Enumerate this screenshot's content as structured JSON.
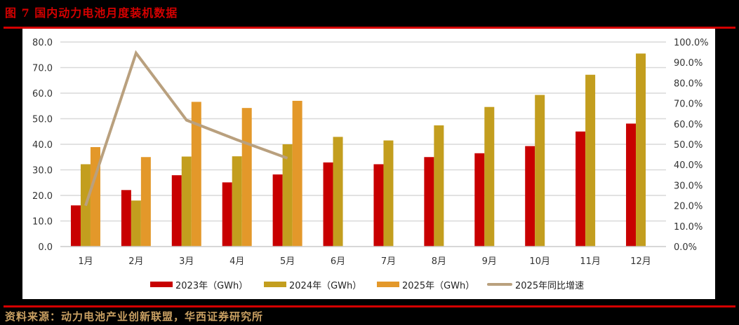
{
  "header": {
    "title": "图 7  国内动力电池月度装机数据"
  },
  "footer": {
    "source": "资料来源：动力电池产业创新联盟，华西证券研究所"
  },
  "colors": {
    "s2023": "#C80000",
    "s2024": "#C39E1E",
    "s2025": "#E3982A",
    "growth": "#B9A07E",
    "grid": "#D9D9D9",
    "accent_red": "#D40000"
  },
  "legend": [
    {
      "label": "2023年（GWh）",
      "color": "#C80000",
      "kind": "bar"
    },
    {
      "label": "2024年（GWh）",
      "color": "#C39E1E",
      "kind": "bar"
    },
    {
      "label": "2025年（GWh）",
      "color": "#E3982A",
      "kind": "bar"
    },
    {
      "label": "2025年同比增速",
      "color": "#B9A07E",
      "kind": "line"
    }
  ],
  "chart_data": {
    "type": "bar",
    "title": "图 7  国内动力电池月度装机数据",
    "xlabel": "",
    "ylabel": "",
    "categories": [
      "1月",
      "2月",
      "3月",
      "4月",
      "5月",
      "6月",
      "7月",
      "8月",
      "9月",
      "10月",
      "11月",
      "12月"
    ],
    "series": [
      {
        "name": "2023年（GWh）",
        "type": "bar",
        "axis": "left",
        "values": [
          16.1,
          22.1,
          27.9,
          25.1,
          28.2,
          32.9,
          32.2,
          35.0,
          36.5,
          39.3,
          45.0,
          48.1
        ]
      },
      {
        "name": "2024年（GWh）",
        "type": "bar",
        "axis": "left",
        "values": [
          32.2,
          18.0,
          35.2,
          35.3,
          40.0,
          42.9,
          41.5,
          47.4,
          54.6,
          59.3,
          67.2,
          75.5
        ]
      },
      {
        "name": "2025年（GWh）",
        "type": "bar",
        "axis": "left",
        "values": [
          38.9,
          35.0,
          56.6,
          54.2,
          57.0,
          null,
          null,
          null,
          null,
          null,
          null,
          null
        ]
      },
      {
        "name": "2025年同比增速",
        "type": "line",
        "axis": "right",
        "values": [
          20.0,
          94.6,
          61.8,
          52.2,
          43.2,
          null,
          null,
          null,
          null,
          null,
          null,
          null
        ]
      }
    ],
    "ylim": [
      0,
      80
    ],
    "y2lim": [
      0,
      100
    ],
    "yticks": [
      "0.0",
      "10.0",
      "20.0",
      "30.0",
      "40.0",
      "50.0",
      "60.0",
      "70.0",
      "80.0"
    ],
    "y2ticks": [
      "0.0%",
      "10.0%",
      "20.0%",
      "30.0%",
      "40.0%",
      "50.0%",
      "60.0%",
      "70.0%",
      "80.0%",
      "90.0%",
      "100.0%"
    ],
    "grid": true,
    "legend_position": "bottom"
  }
}
